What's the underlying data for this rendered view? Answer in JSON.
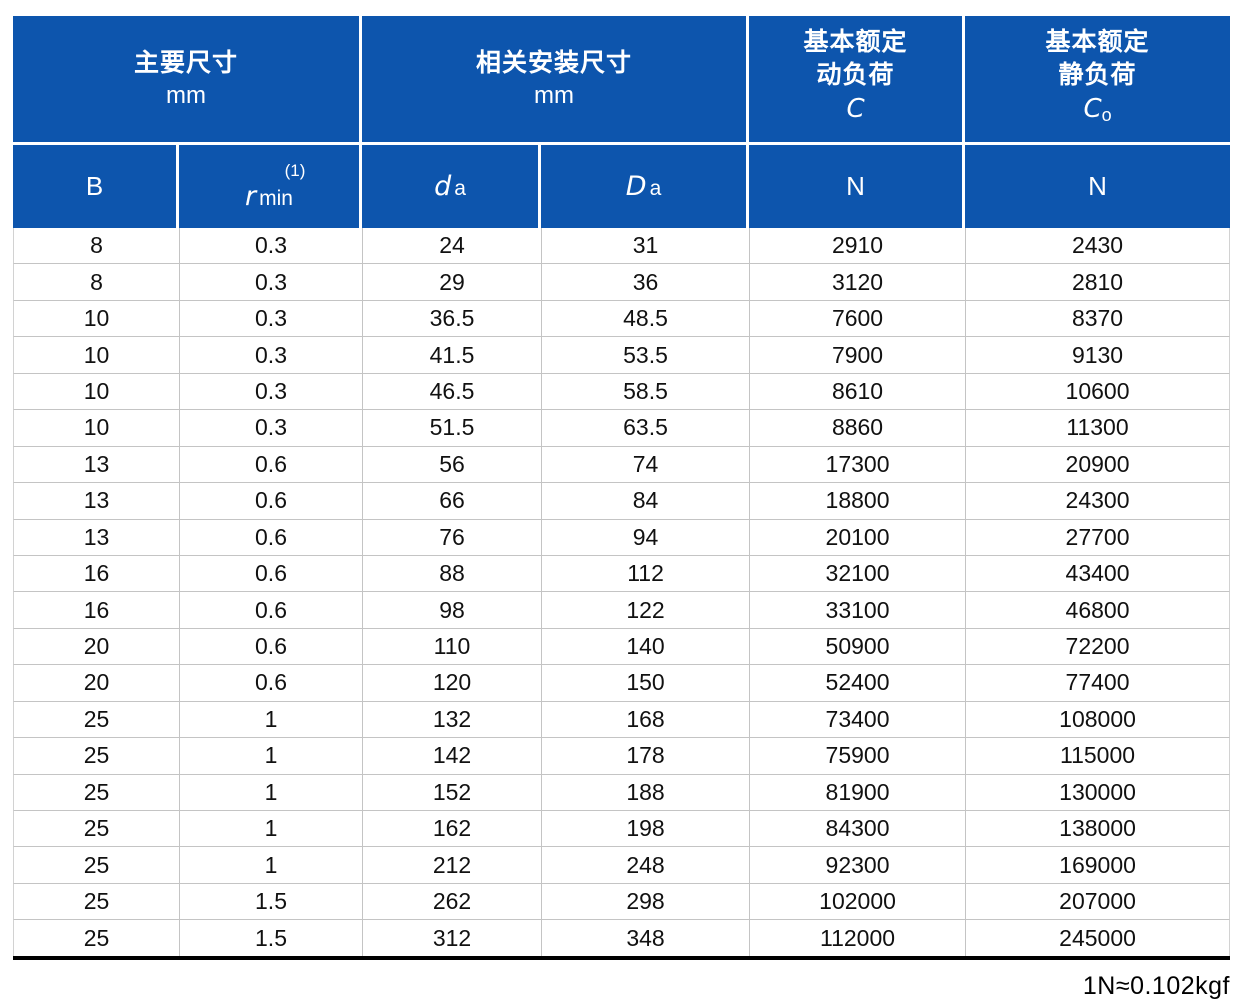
{
  "colors": {
    "header_bg": "#0d55ad",
    "header_fg": "#ffffff",
    "grid_line": "#c4c4c4",
    "grid_outer": "#d2d2d2",
    "bottom_rule": "#000000"
  },
  "header": {
    "main_dimensions": {
      "title": "主要尺寸",
      "unit": "mm"
    },
    "mounting_dimensions": {
      "title": "相关安装尺寸",
      "unit": "mm"
    },
    "dynamic_load": {
      "line1": "基本额定",
      "line2": "动负荷",
      "symbol": "C",
      "subscript": ""
    },
    "static_load": {
      "line1": "基本额定",
      "line2": "静负荷",
      "symbol": "C",
      "subscript": "o"
    }
  },
  "subheader": {
    "b": "B",
    "r_sup": "(1)",
    "r_sym": "r",
    "r_txt": "min",
    "d_sym": "d",
    "d_sub": "a",
    "D_sym": "D",
    "D_sub": "a",
    "n_dynamic": "N",
    "n_static": "N"
  },
  "chart_data": {
    "type": "table",
    "columns": [
      "B",
      "r min (1)",
      "da",
      "Da",
      "C (N)",
      "Co (N)"
    ],
    "rows": [
      [
        "8",
        "0.3",
        "24",
        "31",
        "2910",
        "2430"
      ],
      [
        "8",
        "0.3",
        "29",
        "36",
        "3120",
        "2810"
      ],
      [
        "10",
        "0.3",
        "36.5",
        "48.5",
        "7600",
        "8370"
      ],
      [
        "10",
        "0.3",
        "41.5",
        "53.5",
        "7900",
        "9130"
      ],
      [
        "10",
        "0.3",
        "46.5",
        "58.5",
        "8610",
        "10600"
      ],
      [
        "10",
        "0.3",
        "51.5",
        "63.5",
        "8860",
        "11300"
      ],
      [
        "13",
        "0.6",
        "56",
        "74",
        "17300",
        "20900"
      ],
      [
        "13",
        "0.6",
        "66",
        "84",
        "18800",
        "24300"
      ],
      [
        "13",
        "0.6",
        "76",
        "94",
        "20100",
        "27700"
      ],
      [
        "16",
        "0.6",
        "88",
        "112",
        "32100",
        "43400"
      ],
      [
        "16",
        "0.6",
        "98",
        "122",
        "33100",
        "46800"
      ],
      [
        "20",
        "0.6",
        "110",
        "140",
        "50900",
        "72200"
      ],
      [
        "20",
        "0.6",
        "120",
        "150",
        "52400",
        "77400"
      ],
      [
        "25",
        "1",
        "132",
        "168",
        "73400",
        "108000"
      ],
      [
        "25",
        "1",
        "142",
        "178",
        "75900",
        "115000"
      ],
      [
        "25",
        "1",
        "152",
        "188",
        "81900",
        "130000"
      ],
      [
        "25",
        "1",
        "162",
        "198",
        "84300",
        "138000"
      ],
      [
        "25",
        "1",
        "212",
        "248",
        "92300",
        "169000"
      ],
      [
        "25",
        "1.5",
        "262",
        "298",
        "102000",
        "207000"
      ],
      [
        "25",
        "1.5",
        "312",
        "348",
        "112000",
        "245000"
      ]
    ]
  },
  "footnote": "1N≈0.102kgf"
}
